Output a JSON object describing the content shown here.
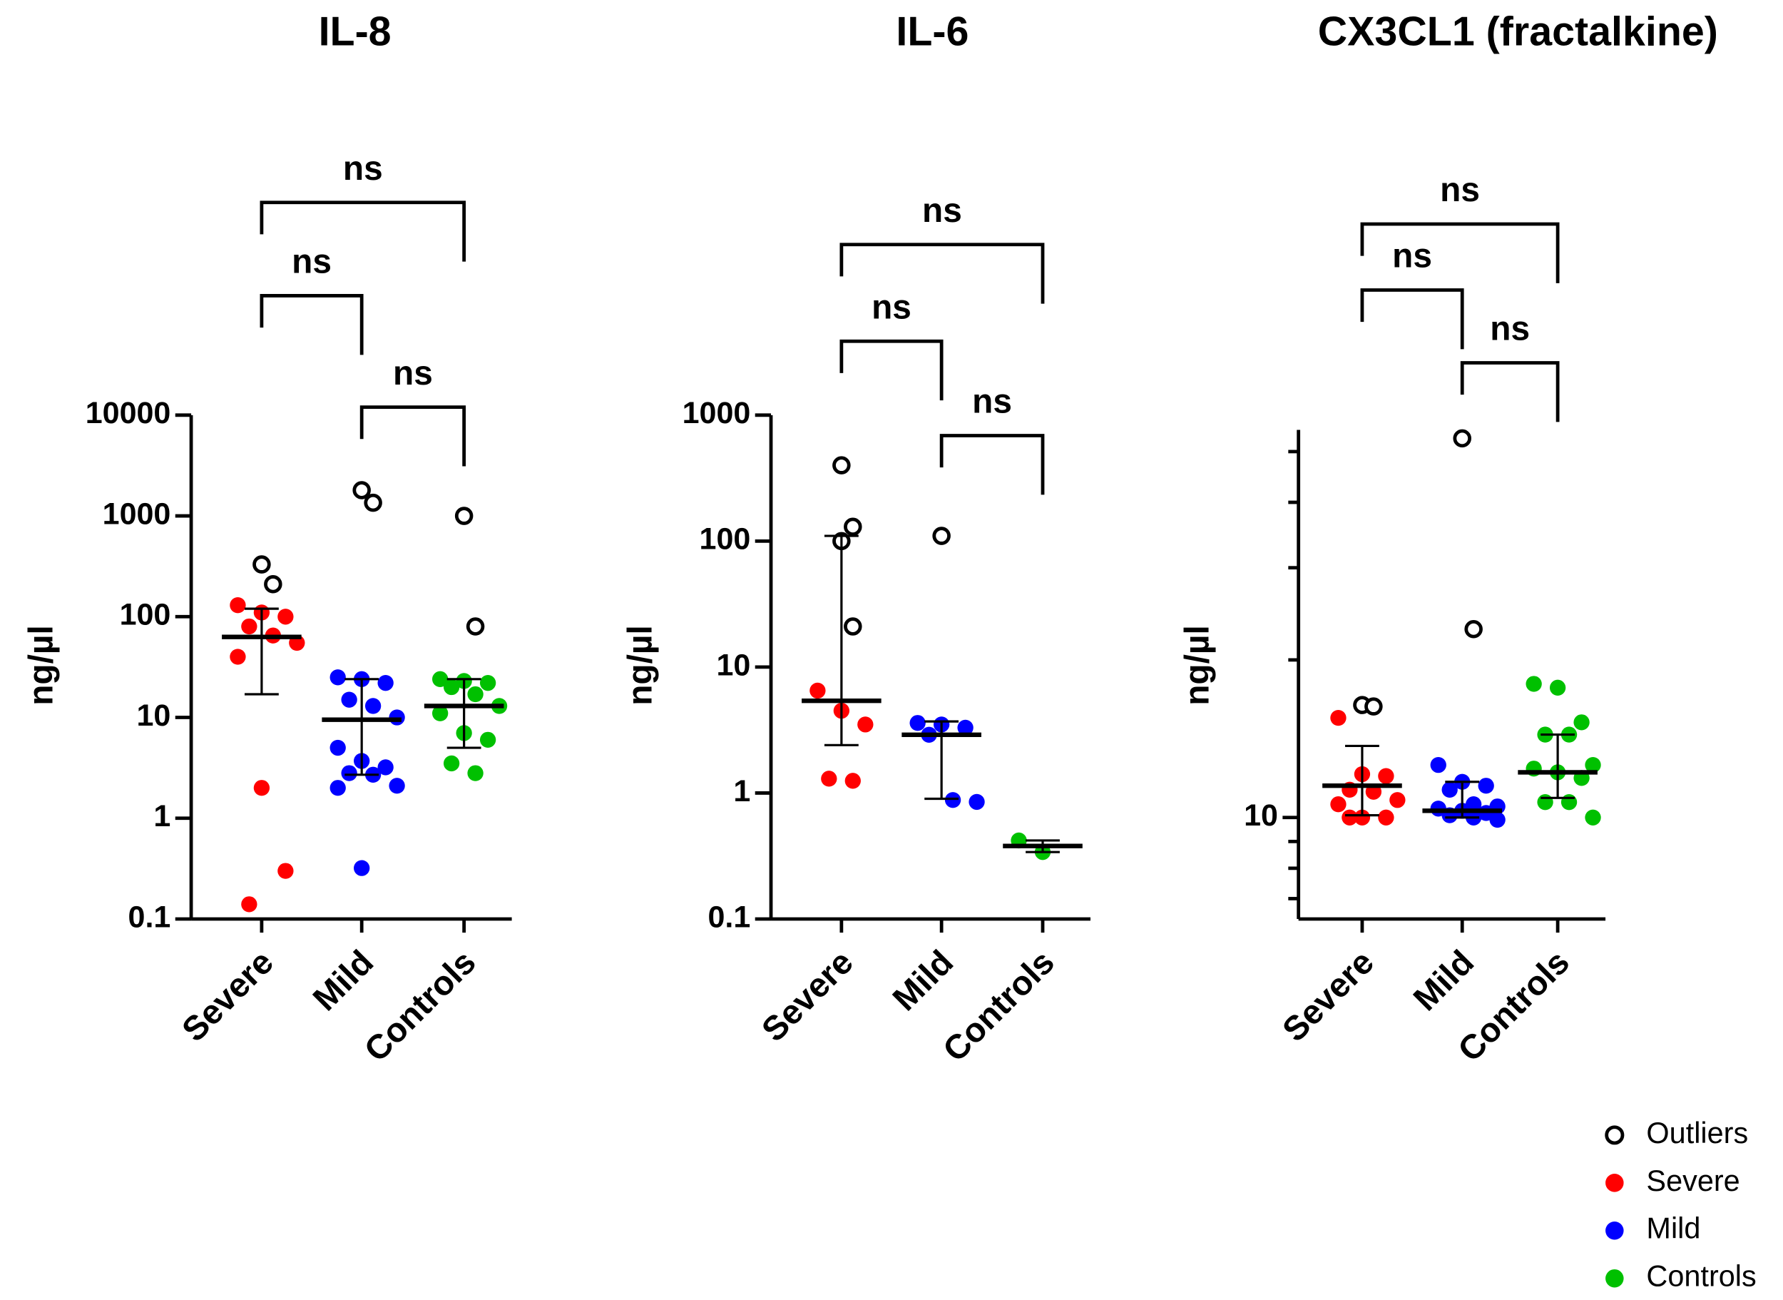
{
  "chart_data": [
    {
      "type": "dotplot",
      "title": "IL-8",
      "ylabel": "ng/µl",
      "log": true,
      "ylim": [
        0.1,
        10000
      ],
      "yticks": [
        0.1,
        1,
        10,
        100,
        1000,
        10000
      ],
      "categories": [
        "Severe",
        "Mild",
        "Controls"
      ],
      "points": [
        [
          130,
          110,
          100,
          80,
          65,
          55,
          40,
          2,
          0.3,
          0.14
        ],
        [
          25,
          24,
          22,
          15,
          13,
          10,
          5,
          3.7,
          3.2,
          2.8,
          2.7,
          2.1,
          2.0,
          0.32
        ],
        [
          24,
          23,
          22,
          20,
          17,
          13,
          11,
          7,
          6,
          3.5,
          2.8
        ]
      ],
      "outliers": [
        [
          330,
          210
        ],
        [
          1800,
          1350
        ],
        [
          1000,
          80
        ]
      ],
      "median": [
        63,
        9.5,
        13
      ],
      "error_low": [
        17,
        2.7,
        5
      ],
      "error_high": [
        120,
        24,
        24
      ],
      "comparisons": [
        {
          "groups": [
            0,
            2
          ],
          "label": "ns"
        },
        {
          "groups": [
            0,
            1
          ],
          "label": "ns"
        },
        {
          "groups": [
            1,
            2
          ],
          "label": "ns"
        }
      ]
    },
    {
      "type": "dotplot",
      "title": "IL-6",
      "ylabel": "ng/µl",
      "log": true,
      "ylim": [
        0.1,
        1000
      ],
      "yticks": [
        0.1,
        1,
        10,
        100,
        1000
      ],
      "categories": [
        "Severe",
        "Mild",
        "Controls"
      ],
      "points": [
        [
          6.5,
          4.5,
          3.5,
          1.3,
          1.25
        ],
        [
          3.6,
          3.5,
          3.3,
          2.9,
          0.88,
          0.85
        ],
        [
          0.42,
          0.34
        ]
      ],
      "outliers": [
        [
          400,
          130,
          100,
          21
        ],
        [
          110
        ],
        []
      ],
      "median": [
        5.4,
        2.9,
        0.38
      ],
      "error_low": [
        2.4,
        0.9,
        0.34
      ],
      "error_high": [
        110,
        3.7,
        0.42
      ],
      "comparisons": [
        {
          "groups": [
            0,
            2
          ],
          "label": "ns"
        },
        {
          "groups": [
            0,
            1
          ],
          "label": "ns"
        },
        {
          "groups": [
            1,
            2
          ],
          "label": "ns"
        }
      ]
    },
    {
      "type": "dotplot",
      "title": "CX3CL1 (fractalkine)",
      "ylabel": "ng/µl",
      "log": true,
      "ylim": [
        6.4,
        55
      ],
      "yticks": [
        10
      ],
      "yminorticks": [
        7,
        8,
        9,
        20,
        30,
        40,
        50
      ],
      "categories": [
        "Severe",
        "Mild",
        "Controls"
      ],
      "points": [
        [
          15.5,
          12.1,
          12.0,
          11.3,
          11.2,
          10.8,
          10.6,
          10.0,
          10.0,
          10.0
        ],
        [
          12.6,
          11.7,
          11.5,
          11.3,
          10.6,
          10.5,
          10.4,
          10.3,
          10.2,
          10.1,
          10.0,
          9.9
        ],
        [
          18.0,
          17.7,
          15.2,
          14.4,
          14.4,
          12.6,
          12.4,
          12.2,
          11.9,
          10.7,
          10.7,
          10.0
        ]
      ],
      "outliers": [
        [
          16.4,
          16.3
        ],
        [
          53,
          22.9
        ],
        []
      ],
      "median": [
        11.5,
        10.3,
        12.2
      ],
      "error_low": [
        10.1,
        10.0,
        10.9
      ],
      "error_high": [
        13.7,
        11.7,
        14.4
      ],
      "comparisons": [
        {
          "groups": [
            0,
            2
          ],
          "label": "ns"
        },
        {
          "groups": [
            0,
            1
          ],
          "label": "ns"
        },
        {
          "groups": [
            1,
            2
          ],
          "label": "ns"
        }
      ]
    }
  ],
  "legend": [
    {
      "name": "Outliers",
      "color": "#000000"
    },
    {
      "name": "Severe",
      "color": "#ff0000"
    },
    {
      "name": "Mild",
      "color": "#0000ff"
    },
    {
      "name": "Controls",
      "color": "#00c000"
    }
  ]
}
